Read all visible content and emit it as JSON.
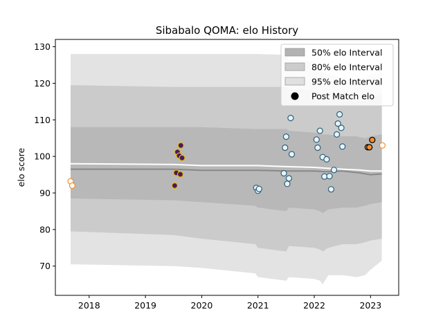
{
  "chart_data": {
    "type": "scatter",
    "title": "Sibabalo QOMA: elo History",
    "xlabel": "",
    "ylabel": "elo score",
    "xlim": [
      2017.4,
      2023.5
    ],
    "ylim": [
      62,
      132
    ],
    "x_ticks": [
      2018,
      2019,
      2020,
      2021,
      2022,
      2023
    ],
    "x_tick_labels": [
      "2018",
      "2019",
      "2020",
      "2021",
      "2022",
      "2023"
    ],
    "y_ticks": [
      70,
      80,
      90,
      100,
      110,
      120,
      130
    ],
    "y_tick_labels": [
      "70",
      "80",
      "90",
      "100",
      "110",
      "120",
      "130"
    ],
    "grid": false,
    "legend": {
      "position": "top-right",
      "entries": [
        {
          "label": "50% elo Interval",
          "color": "#b3b3b3"
        },
        {
          "label": "80% elo Interval",
          "color": "#cccccc"
        },
        {
          "label": "95% elo Interval",
          "color": "#e0e0e0"
        },
        {
          "label": "Post Match elo",
          "color": "#000000"
        }
      ]
    },
    "bands": {
      "x": [
        2017.67,
        2019.5,
        2020.0,
        2020.95,
        2021.0,
        2021.5,
        2021.55,
        2022.0,
        2022.1,
        2022.15,
        2022.25,
        2022.5,
        2022.75,
        2022.9,
        2023.0,
        2023.2
      ],
      "p95": {
        "upper": [
          128,
          128,
          128,
          128,
          128,
          127.8,
          126.5,
          126,
          124,
          123,
          122.5,
          121.5,
          121,
          121,
          122.5,
          123
        ],
        "lower": [
          70.5,
          70,
          69.5,
          68,
          67,
          66,
          67,
          66.5,
          66,
          65,
          67.5,
          67.5,
          67,
          67.5,
          69,
          71.5
        ]
      },
      "p80": {
        "upper": [
          119.5,
          119,
          119,
          119,
          119,
          119,
          118.5,
          118,
          117,
          116.5,
          116,
          115.5,
          115,
          115,
          116,
          117
        ],
        "lower": [
          79.5,
          78.5,
          77.5,
          76,
          75,
          74,
          75.5,
          75,
          74.5,
          74,
          75,
          76,
          76,
          76.5,
          77,
          77.5
        ]
      },
      "p50": {
        "upper": [
          108,
          108,
          108,
          107.5,
          107.5,
          107.5,
          107,
          106.5,
          106,
          106,
          106,
          105.5,
          105.5,
          105,
          105.5,
          106
        ],
        "lower": [
          88.5,
          88,
          87.5,
          86.5,
          86,
          85,
          86,
          85.5,
          85,
          84.5,
          85.5,
          86,
          86,
          86.5,
          87,
          87.5
        ]
      }
    },
    "mean_line": {
      "x": [
        2017.67,
        2019.5,
        2020.0,
        2021.0,
        2021.5,
        2022.0,
        2022.2,
        2022.5,
        2022.8,
        2023.0,
        2023.2
      ],
      "y": [
        96.5,
        96.5,
        96.2,
        96.2,
        96.0,
        96.0,
        95.8,
        96.0,
        95.5,
        95.0,
        95.2
      ]
    },
    "median_line": {
      "x": [
        2017.67,
        2019.5,
        2020.0,
        2021.0,
        2021.5,
        2022.0,
        2022.2,
        2022.5,
        2022.8,
        2023.0,
        2023.2
      ],
      "y": [
        98.0,
        97.8,
        97.5,
        97.5,
        97.2,
        97.0,
        96.8,
        96.5,
        96.3,
        96.0,
        96.0
      ]
    },
    "series": [
      {
        "name": "",
        "fill": "#ffffff",
        "edge": "#f28e2b",
        "points": [
          [
            2017.67,
            93.2
          ],
          [
            2017.7,
            92.0
          ],
          [
            2023.21,
            103.0
          ]
        ]
      },
      {
        "name": "",
        "fill": "#4a1a5c",
        "edge": "#e6b800",
        "points": [
          [
            2019.52,
            92.0
          ],
          [
            2019.55,
            95.5
          ],
          [
            2019.57,
            101.2
          ],
          [
            2019.6,
            100.2
          ],
          [
            2019.62,
            95.1
          ],
          [
            2019.63,
            103.0
          ],
          [
            2019.65,
            99.6
          ]
        ]
      },
      {
        "name": "",
        "fill": "#e8f4f8",
        "edge": "#2a5f7a",
        "points": [
          [
            2020.97,
            91.4
          ],
          [
            2021.0,
            90.6
          ],
          [
            2021.02,
            91.1
          ],
          [
            2021.46,
            95.4
          ],
          [
            2021.48,
            102.4
          ],
          [
            2021.5,
            105.4
          ],
          [
            2021.52,
            92.5
          ],
          [
            2021.55,
            94.0
          ],
          [
            2021.58,
            110.5
          ],
          [
            2021.6,
            100.6
          ],
          [
            2022.04,
            104.6
          ],
          [
            2022.06,
            102.4
          ],
          [
            2022.1,
            107.0
          ],
          [
            2022.15,
            99.8
          ],
          [
            2022.18,
            94.5
          ],
          [
            2022.22,
            99.2
          ],
          [
            2022.27,
            94.6
          ],
          [
            2022.3,
            91.0
          ],
          [
            2022.35,
            96.3
          ],
          [
            2022.4,
            106.0
          ],
          [
            2022.42,
            109.0
          ],
          [
            2022.45,
            111.5
          ],
          [
            2022.48,
            107.8
          ],
          [
            2022.5,
            102.7
          ]
        ]
      },
      {
        "name": "",
        "fill": "#f28e2b",
        "edge": "#000000",
        "points": [
          [
            2022.95,
            102.5
          ],
          [
            2022.98,
            102.5
          ],
          [
            2023.03,
            104.5
          ]
        ]
      }
    ]
  }
}
